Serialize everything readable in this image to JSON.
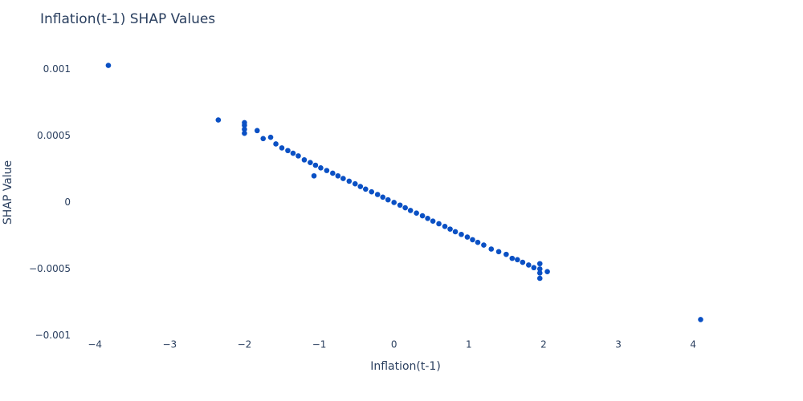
{
  "chart_data": {
    "type": "scatter",
    "title": "Inflation(t-1) SHAP Values",
    "x_label": "Inflation(t-1)",
    "y_label": "SHAP Value",
    "color": "#0a50c4",
    "grid": false,
    "xlim": [
      -4.41,
      4.61
    ],
    "ylim": [
      -0.00101,
      0.00116
    ],
    "xticks": [
      {
        "value": -4,
        "label": "−4"
      },
      {
        "value": -3,
        "label": "−3"
      },
      {
        "value": -2,
        "label": "−2"
      },
      {
        "value": -1,
        "label": "−1"
      },
      0,
      1,
      2,
      3,
      4
    ],
    "yticks": [
      {
        "value": -0.001,
        "label": "−0.001"
      },
      {
        "value": -0.0005,
        "label": "−0.0005"
      },
      0,
      0.0005,
      0.001
    ],
    "x": [
      -2,
      -2,
      -2,
      -2,
      -1.83,
      -1.75,
      -1.65,
      -1.58,
      -1.5,
      -1.42,
      -1.35,
      -1.28,
      -1.2,
      -1.12,
      -1.05,
      -0.98,
      -0.9,
      -0.82,
      -0.75,
      -0.68,
      -0.6,
      -0.52,
      -0.45,
      -0.38,
      -0.3,
      -0.22,
      -0.15,
      -0.08,
      0,
      0.08,
      0.15,
      0.22,
      0.3,
      0.38,
      0.45,
      0.52,
      0.6,
      0.68,
      0.75,
      0.82,
      0.9,
      0.98,
      1.05,
      1.12,
      1.2,
      1.3,
      1.4,
      1.5,
      1.58,
      1.65,
      1.72,
      1.8,
      1.87,
      1.95,
      1.95,
      1.95,
      1.95,
      2.05,
      -3.82,
      -2.35,
      -1.07,
      4.1
    ],
    "values": [
      0.00052,
      0.00055,
      0.00058,
      0.0006,
      0.00054,
      0.00048,
      0.00049,
      0.00044,
      0.00041,
      0.00039,
      0.00037,
      0.00035,
      0.00032,
      0.0003,
      0.00028,
      0.00026,
      0.00024,
      0.00022,
      0.0002,
      0.00018,
      0.00016,
      0.00014,
      0.00012,
      0.0001,
      8e-05,
      6e-05,
      4e-05,
      2e-05,
      0,
      -2e-05,
      -4e-05,
      -6e-05,
      -8e-05,
      -0.0001,
      -0.00012,
      -0.00014,
      -0.00016,
      -0.00018,
      -0.0002,
      -0.00022,
      -0.00024,
      -0.00026,
      -0.00028,
      -0.0003,
      -0.00032,
      -0.00035,
      -0.00037,
      -0.00039,
      -0.00042,
      -0.00043,
      -0.00045,
      -0.00047,
      -0.00049,
      -0.00046,
      -0.0005,
      -0.00053,
      -0.00057,
      -0.00052,
      0.00103,
      0.00062,
      0.0002,
      -0.00088
    ]
  }
}
